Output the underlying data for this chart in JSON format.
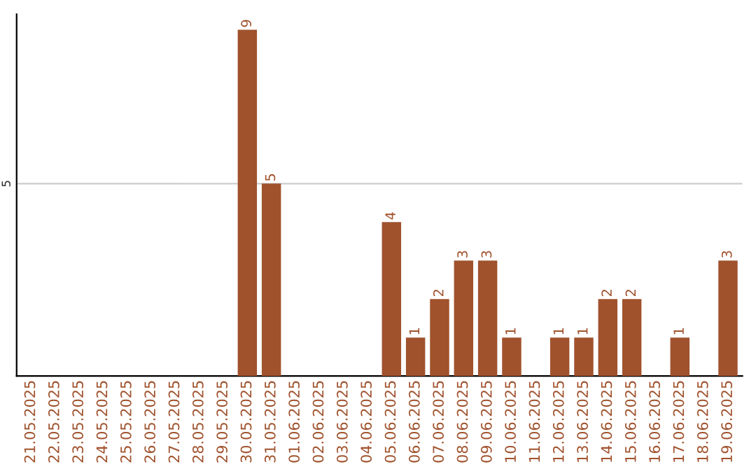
{
  "chart_data": {
    "type": "bar",
    "categories": [
      "21.05.2025",
      "22.05.2025",
      "23.05.2025",
      "24.05.2025",
      "25.05.2025",
      "26.05.2025",
      "27.05.2025",
      "28.05.2025",
      "29.05.2025",
      "30.05.2025",
      "31.05.2025",
      "01.06.2025",
      "02.06.2025",
      "03.06.2025",
      "04.06.2025",
      "05.06.2025",
      "06.06.2025",
      "07.06.2025",
      "08.06.2025",
      "09.06.2025",
      "10.06.2025",
      "11.06.2025",
      "12.06.2025",
      "13.06.2025",
      "14.06.2025",
      "15.06.2025",
      "16.06.2025",
      "17.06.2025",
      "18.06.2025",
      "19.06.2025"
    ],
    "values": [
      0,
      0,
      0,
      0,
      0,
      0,
      0,
      0,
      0,
      9,
      5,
      0,
      0,
      0,
      0,
      4,
      1,
      2,
      3,
      3,
      1,
      0,
      1,
      1,
      2,
      2,
      0,
      1,
      0,
      3
    ],
    "value_labels": [
      null,
      null,
      null,
      null,
      null,
      null,
      null,
      null,
      null,
      "9",
      "5",
      null,
      null,
      null,
      null,
      "4",
      "1",
      "2",
      "3",
      "3",
      "1",
      null,
      "1",
      "1",
      "2",
      "2",
      null,
      "1",
      null,
      "3"
    ],
    "color": "#a0522d",
    "ylim": [
      0,
      9.4
    ],
    "yticks": [
      5
    ],
    "grid": "y",
    "legend": false
  }
}
